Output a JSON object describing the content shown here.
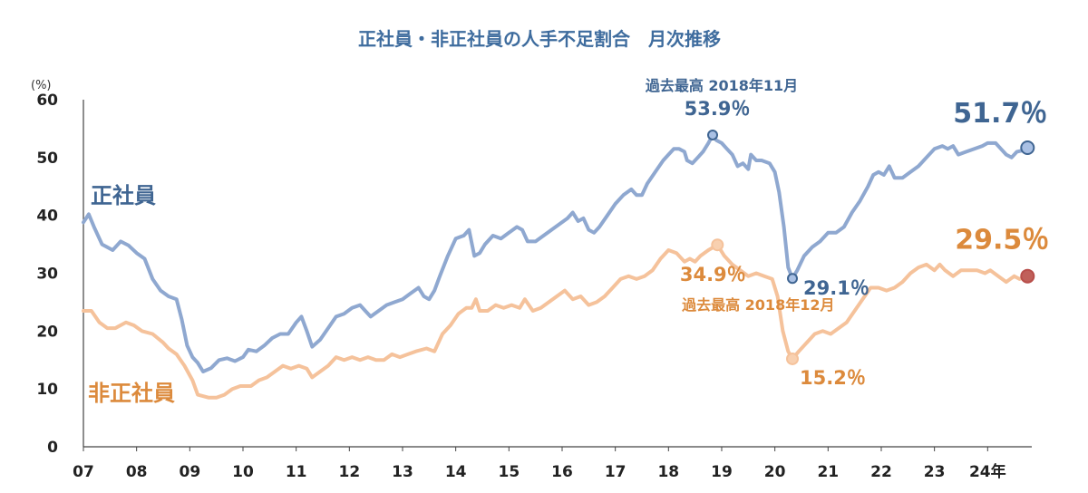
{
  "chart_data": {
    "type": "line",
    "title": "正社員・非正社員の人手不足割合　月次推移",
    "y_unit_label": "(%)",
    "ylim": [
      0,
      60
    ],
    "yticks": [
      "0",
      "10",
      "20",
      "30",
      "40",
      "50",
      "60"
    ],
    "xlim": [
      2007.0,
      2024.83
    ],
    "x_tick_labels": [
      "07",
      "08",
      "09",
      "10",
      "11",
      "12",
      "13",
      "14",
      "15",
      "16",
      "17",
      "18",
      "19",
      "20",
      "21",
      "22",
      "23",
      "24年"
    ],
    "grid": false,
    "legend": "direct-labels",
    "series": [
      {
        "name": "正社員",
        "color": "#8FA8D0",
        "points": [
          [
            2007.0,
            38.8
          ],
          [
            2007.1,
            40.2
          ],
          [
            2007.2,
            38.0
          ],
          [
            2007.35,
            35.0
          ],
          [
            2007.55,
            34.0
          ],
          [
            2007.7,
            35.5
          ],
          [
            2007.85,
            34.8
          ],
          [
            2008.0,
            33.5
          ],
          [
            2008.15,
            32.5
          ],
          [
            2008.3,
            29.0
          ],
          [
            2008.45,
            27.0
          ],
          [
            2008.6,
            26.0
          ],
          [
            2008.75,
            25.5
          ],
          [
            2008.85,
            22.0
          ],
          [
            2008.95,
            17.5
          ],
          [
            2009.05,
            15.5
          ],
          [
            2009.15,
            14.5
          ],
          [
            2009.25,
            13.0
          ],
          [
            2009.4,
            13.6
          ],
          [
            2009.55,
            15.0
          ],
          [
            2009.7,
            15.3
          ],
          [
            2009.85,
            14.8
          ],
          [
            2010.0,
            15.5
          ],
          [
            2010.1,
            16.8
          ],
          [
            2010.25,
            16.5
          ],
          [
            2010.4,
            17.5
          ],
          [
            2010.55,
            18.8
          ],
          [
            2010.7,
            19.5
          ],
          [
            2010.85,
            19.5
          ],
          [
            2011.0,
            21.5
          ],
          [
            2011.1,
            22.5
          ],
          [
            2011.2,
            20.0
          ],
          [
            2011.3,
            17.3
          ],
          [
            2011.45,
            18.5
          ],
          [
            2011.6,
            20.5
          ],
          [
            2011.75,
            22.5
          ],
          [
            2011.9,
            23.0
          ],
          [
            2012.05,
            24.0
          ],
          [
            2012.2,
            24.5
          ],
          [
            2012.3,
            23.5
          ],
          [
            2012.4,
            22.5
          ],
          [
            2012.55,
            23.5
          ],
          [
            2012.7,
            24.5
          ],
          [
            2012.85,
            25.0
          ],
          [
            2013.0,
            25.5
          ],
          [
            2013.15,
            26.5
          ],
          [
            2013.3,
            27.5
          ],
          [
            2013.4,
            26.0
          ],
          [
            2013.5,
            25.5
          ],
          [
            2013.6,
            27.0
          ],
          [
            2013.7,
            29.5
          ],
          [
            2013.85,
            33.0
          ],
          [
            2014.0,
            36.0
          ],
          [
            2014.15,
            36.5
          ],
          [
            2014.25,
            37.5
          ],
          [
            2014.35,
            33.0
          ],
          [
            2014.45,
            33.5
          ],
          [
            2014.55,
            35.0
          ],
          [
            2014.7,
            36.5
          ],
          [
            2014.85,
            36.0
          ],
          [
            2015.0,
            37.0
          ],
          [
            2015.15,
            38.0
          ],
          [
            2015.25,
            37.5
          ],
          [
            2015.35,
            35.5
          ],
          [
            2015.5,
            35.5
          ],
          [
            2015.65,
            36.5
          ],
          [
            2015.8,
            37.5
          ],
          [
            2015.95,
            38.5
          ],
          [
            2016.1,
            39.5
          ],
          [
            2016.2,
            40.5
          ],
          [
            2016.3,
            39.0
          ],
          [
            2016.4,
            39.5
          ],
          [
            2016.5,
            37.5
          ],
          [
            2016.6,
            37.0
          ],
          [
            2016.7,
            38.0
          ],
          [
            2016.85,
            40.0
          ],
          [
            2017.0,
            42.0
          ],
          [
            2017.15,
            43.5
          ],
          [
            2017.3,
            44.5
          ],
          [
            2017.4,
            43.5
          ],
          [
            2017.5,
            43.5
          ],
          [
            2017.6,
            45.5
          ],
          [
            2017.75,
            47.5
          ],
          [
            2017.9,
            49.5
          ],
          [
            2018.0,
            50.5
          ],
          [
            2018.1,
            51.5
          ],
          [
            2018.2,
            51.5
          ],
          [
            2018.3,
            51.0
          ],
          [
            2018.35,
            49.5
          ],
          [
            2018.45,
            49.0
          ],
          [
            2018.55,
            50.0
          ],
          [
            2018.65,
            51.0
          ],
          [
            2018.75,
            52.5
          ],
          [
            2018.83,
            53.9
          ],
          [
            2018.9,
            53.0
          ],
          [
            2019.0,
            52.5
          ],
          [
            2019.1,
            51.5
          ],
          [
            2019.2,
            50.5
          ],
          [
            2019.3,
            48.5
          ],
          [
            2019.4,
            49.0
          ],
          [
            2019.5,
            48.0
          ],
          [
            2019.55,
            50.5
          ],
          [
            2019.65,
            49.5
          ],
          [
            2019.75,
            49.5
          ],
          [
            2019.9,
            49.0
          ],
          [
            2020.0,
            47.5
          ],
          [
            2020.08,
            44.0
          ],
          [
            2020.17,
            38.0
          ],
          [
            2020.25,
            31.0
          ],
          [
            2020.33,
            29.1
          ],
          [
            2020.42,
            30.5
          ],
          [
            2020.55,
            33.0
          ],
          [
            2020.7,
            34.5
          ],
          [
            2020.85,
            35.5
          ],
          [
            2021.0,
            37.0
          ],
          [
            2021.15,
            37.0
          ],
          [
            2021.3,
            38.0
          ],
          [
            2021.45,
            40.5
          ],
          [
            2021.6,
            42.5
          ],
          [
            2021.75,
            45.0
          ],
          [
            2021.85,
            47.0
          ],
          [
            2021.95,
            47.5
          ],
          [
            2022.05,
            47.0
          ],
          [
            2022.15,
            48.5
          ],
          [
            2022.25,
            46.5
          ],
          [
            2022.4,
            46.5
          ],
          [
            2022.55,
            47.5
          ],
          [
            2022.7,
            48.5
          ],
          [
            2022.85,
            50.0
          ],
          [
            2023.0,
            51.5
          ],
          [
            2023.15,
            52.0
          ],
          [
            2023.25,
            51.5
          ],
          [
            2023.35,
            52.0
          ],
          [
            2023.45,
            50.5
          ],
          [
            2023.6,
            51.0
          ],
          [
            2023.75,
            51.5
          ],
          [
            2023.9,
            52.0
          ],
          [
            2024.0,
            52.5
          ],
          [
            2024.15,
            52.5
          ],
          [
            2024.25,
            51.5
          ],
          [
            2024.35,
            50.5
          ],
          [
            2024.45,
            50.0
          ],
          [
            2024.55,
            51.0
          ],
          [
            2024.65,
            51.2
          ],
          [
            2024.75,
            51.7
          ]
        ]
      },
      {
        "name": "非正社員",
        "color": "#F5C29B",
        "points": [
          [
            2007.0,
            23.5
          ],
          [
            2007.15,
            23.5
          ],
          [
            2007.3,
            21.5
          ],
          [
            2007.45,
            20.5
          ],
          [
            2007.6,
            20.5
          ],
          [
            2007.8,
            21.5
          ],
          [
            2007.95,
            21.0
          ],
          [
            2008.1,
            20.0
          ],
          [
            2008.3,
            19.5
          ],
          [
            2008.5,
            18.0
          ],
          [
            2008.6,
            17.0
          ],
          [
            2008.75,
            16.0
          ],
          [
            2008.9,
            14.0
          ],
          [
            2009.05,
            11.5
          ],
          [
            2009.15,
            9.0
          ],
          [
            2009.35,
            8.5
          ],
          [
            2009.5,
            8.5
          ],
          [
            2009.65,
            9.0
          ],
          [
            2009.8,
            10.0
          ],
          [
            2009.95,
            10.5
          ],
          [
            2010.15,
            10.5
          ],
          [
            2010.3,
            11.5
          ],
          [
            2010.45,
            12.0
          ],
          [
            2010.6,
            13.0
          ],
          [
            2010.75,
            14.0
          ],
          [
            2010.9,
            13.5
          ],
          [
            2011.05,
            14.0
          ],
          [
            2011.2,
            13.5
          ],
          [
            2011.3,
            12.0
          ],
          [
            2011.45,
            13.0
          ],
          [
            2011.6,
            14.0
          ],
          [
            2011.75,
            15.5
          ],
          [
            2011.9,
            15.0
          ],
          [
            2012.05,
            15.5
          ],
          [
            2012.2,
            15.0
          ],
          [
            2012.35,
            15.5
          ],
          [
            2012.5,
            15.0
          ],
          [
            2012.65,
            15.0
          ],
          [
            2012.8,
            16.0
          ],
          [
            2012.95,
            15.5
          ],
          [
            2013.1,
            16.0
          ],
          [
            2013.25,
            16.5
          ],
          [
            2013.45,
            17.0
          ],
          [
            2013.6,
            16.5
          ],
          [
            2013.75,
            19.5
          ],
          [
            2013.9,
            21.0
          ],
          [
            2014.05,
            23.0
          ],
          [
            2014.2,
            24.0
          ],
          [
            2014.3,
            24.0
          ],
          [
            2014.38,
            25.5
          ],
          [
            2014.45,
            23.5
          ],
          [
            2014.6,
            23.5
          ],
          [
            2014.75,
            24.5
          ],
          [
            2014.9,
            24.0
          ],
          [
            2015.05,
            24.5
          ],
          [
            2015.2,
            24.0
          ],
          [
            2015.3,
            25.5
          ],
          [
            2015.45,
            23.5
          ],
          [
            2015.6,
            24.0
          ],
          [
            2015.75,
            25.0
          ],
          [
            2015.9,
            26.0
          ],
          [
            2016.05,
            27.0
          ],
          [
            2016.2,
            25.5
          ],
          [
            2016.35,
            26.0
          ],
          [
            2016.5,
            24.5
          ],
          [
            2016.65,
            25.0
          ],
          [
            2016.8,
            26.0
          ],
          [
            2016.95,
            27.5
          ],
          [
            2017.1,
            29.0
          ],
          [
            2017.25,
            29.5
          ],
          [
            2017.4,
            29.0
          ],
          [
            2017.55,
            29.5
          ],
          [
            2017.7,
            30.5
          ],
          [
            2017.85,
            32.5
          ],
          [
            2018.0,
            34.0
          ],
          [
            2018.15,
            33.5
          ],
          [
            2018.3,
            32.0
          ],
          [
            2018.4,
            32.5
          ],
          [
            2018.5,
            32.0
          ],
          [
            2018.6,
            33.0
          ],
          [
            2018.75,
            34.0
          ],
          [
            2018.92,
            34.9
          ],
          [
            2019.05,
            33.0
          ],
          [
            2019.2,
            31.5
          ],
          [
            2019.35,
            30.5
          ],
          [
            2019.5,
            29.5
          ],
          [
            2019.65,
            30.0
          ],
          [
            2019.8,
            29.5
          ],
          [
            2019.95,
            29.0
          ],
          [
            2020.05,
            26.0
          ],
          [
            2020.15,
            20.0
          ],
          [
            2020.25,
            16.5
          ],
          [
            2020.33,
            15.2
          ],
          [
            2020.45,
            16.5
          ],
          [
            2020.6,
            18.0
          ],
          [
            2020.75,
            19.5
          ],
          [
            2020.9,
            20.0
          ],
          [
            2021.05,
            19.5
          ],
          [
            2021.2,
            20.5
          ],
          [
            2021.35,
            21.5
          ],
          [
            2021.5,
            23.5
          ],
          [
            2021.65,
            25.5
          ],
          [
            2021.8,
            27.5
          ],
          [
            2021.95,
            27.5
          ],
          [
            2022.1,
            27.0
          ],
          [
            2022.25,
            27.5
          ],
          [
            2022.4,
            28.5
          ],
          [
            2022.55,
            30.0
          ],
          [
            2022.7,
            31.0
          ],
          [
            2022.85,
            31.5
          ],
          [
            2023.0,
            30.5
          ],
          [
            2023.1,
            31.5
          ],
          [
            2023.2,
            30.5
          ],
          [
            2023.35,
            29.5
          ],
          [
            2023.5,
            30.5
          ],
          [
            2023.65,
            30.5
          ],
          [
            2023.8,
            30.5
          ],
          [
            2023.95,
            30.0
          ],
          [
            2024.05,
            30.5
          ],
          [
            2024.2,
            29.5
          ],
          [
            2024.35,
            28.5
          ],
          [
            2024.5,
            29.5
          ],
          [
            2024.6,
            29.0
          ],
          [
            2024.75,
            29.5
          ]
        ]
      }
    ],
    "annotations": [
      {
        "series": 0,
        "x": 2018.83,
        "y": 53.9,
        "value_text": "53.9％",
        "note": "過去最高 2018年11月"
      },
      {
        "series": 1,
        "x": 2018.92,
        "y": 34.9,
        "value_text": "34.9％",
        "note": "過去最高 2018年12月"
      },
      {
        "series": 0,
        "x": 2020.33,
        "y": 29.1,
        "value_text": "29.1％"
      },
      {
        "series": 1,
        "x": 2020.33,
        "y": 15.2,
        "value_text": "15.2％"
      },
      {
        "series": 0,
        "x": 2024.75,
        "y": 51.7,
        "value_text": "51.7％"
      },
      {
        "series": 1,
        "x": 2024.75,
        "y": 29.5,
        "value_text": "29.5％"
      }
    ]
  },
  "colors": {
    "title": "#3E6C9E",
    "blue_text": "#3F6592",
    "orange_text": "#DC8A3C",
    "blue_marker_fill": "#A9C0E4",
    "orange_marker_fill": "#C0605A",
    "orange_peak_fill": "#F8D0B0",
    "axis": "#444444"
  }
}
